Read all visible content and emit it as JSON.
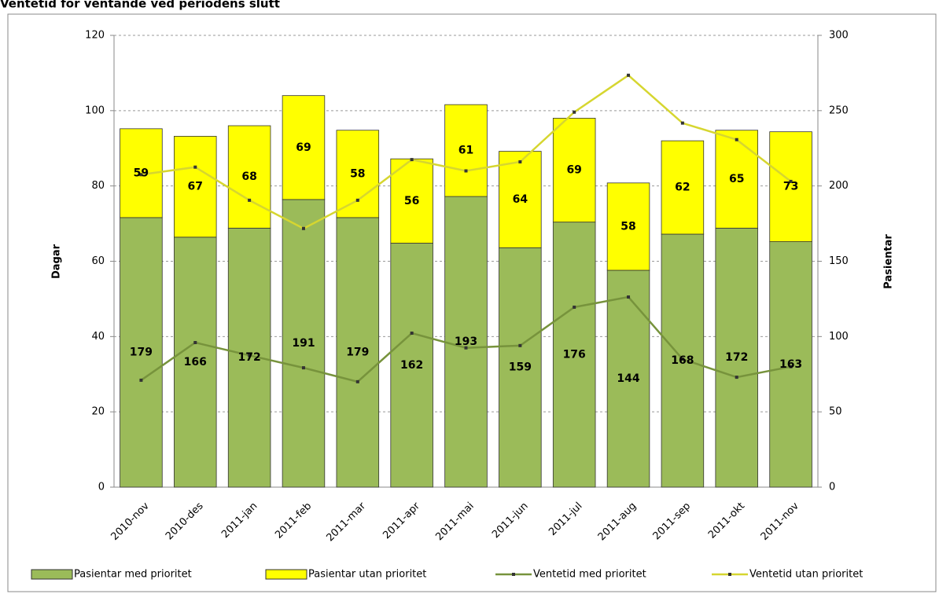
{
  "chart_data": {
    "type": "bar",
    "title": "Ventetid for ventande ved periodens slutt",
    "y_label": "Dagar",
    "y2_label": "Pasientar",
    "categories": [
      "2010-nov",
      "2010-des",
      "2011-jan",
      "2011-feb",
      "2011-mar",
      "2011-apr",
      "2011-mai",
      "2011-jun",
      "2011-jul",
      "2011-aug",
      "2011-sep",
      "2011-okt",
      "2011-nov"
    ],
    "ylim": [
      0,
      120
    ],
    "yticks": [
      0,
      20,
      40,
      60,
      80,
      100,
      120
    ],
    "y2lim": [
      0,
      300
    ],
    "y2ticks": [
      0,
      50,
      100,
      150,
      200,
      250,
      300
    ],
    "grid": true,
    "stacked": true,
    "legend": "bottom",
    "series": [
      {
        "name": "Pasientar med prioritet",
        "type": "bar",
        "axis": "y2",
        "color": "#9bbb59",
        "values": [
          179,
          166,
          172,
          191,
          179,
          162,
          193,
          159,
          176,
          144,
          168,
          172,
          163
        ]
      },
      {
        "name": "Pasientar utan prioritet",
        "type": "bar",
        "axis": "y2",
        "color": "#ffff00",
        "values": [
          59,
          67,
          68,
          69,
          58,
          56,
          61,
          64,
          69,
          58,
          62,
          65,
          73
        ]
      },
      {
        "name": "Ventetid med prioritet",
        "type": "line",
        "color": "#77933c",
        "values": [
          28.4,
          38.4,
          35,
          31.7,
          28,
          40.9,
          37,
          37.6,
          47.8,
          50.5,
          34,
          29.2,
          32
        ]
      },
      {
        "name": "Ventetid utan prioritet",
        "type": "line",
        "color": "#d6d630",
        "values": [
          83,
          85,
          76.2,
          68.7,
          76.2,
          87,
          84,
          86.4,
          99.6,
          109.4,
          96.7,
          92.3,
          81.2
        ]
      }
    ]
  }
}
